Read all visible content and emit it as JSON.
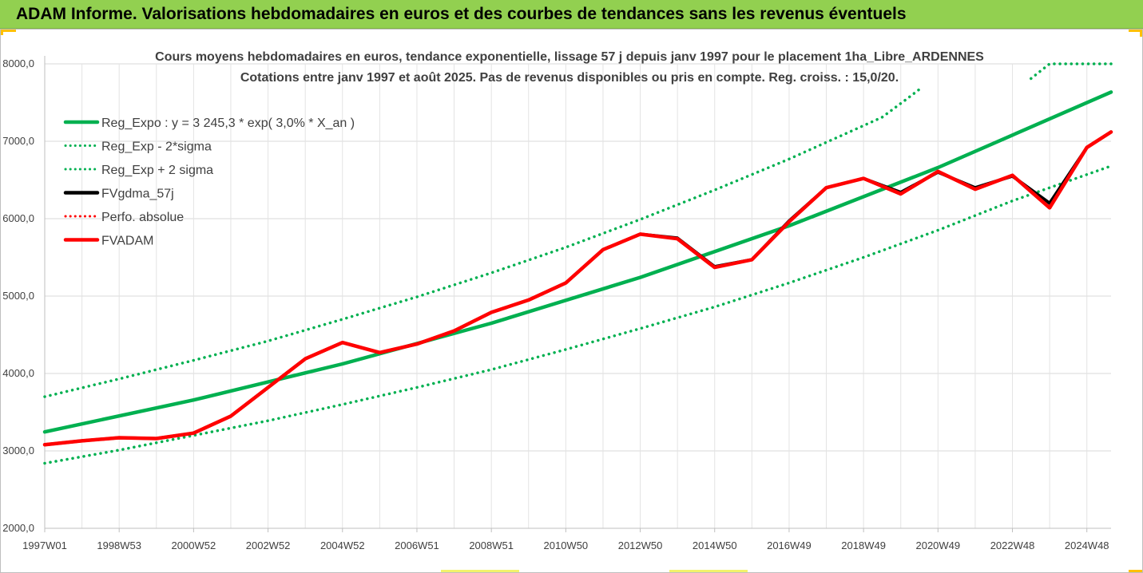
{
  "header": {
    "banner_text": "ADAM Informe. Valorisations hebdomadaires en euros et des courbes de tendances sans les revenus éventuels"
  },
  "chart_data": {
    "type": "line",
    "title_lines": [
      "Cours moyens hebdomadaires en euros, tendance exponentielle, lissage 57 j depuis janv 1997 pour le placement 1ha_Libre_ARDENNES",
      "Cotations entre janv 1997 et août 2025. Pas de revenus disponibles ou pris en compte. Reg. croiss. : 15,0/20."
    ],
    "xlabel": "",
    "ylabel": "",
    "ylim": [
      2000,
      8000
    ],
    "y_ticks": [
      "2000,0",
      "3000,0",
      "4000,0",
      "5000,0",
      "6000,0",
      "7000,0",
      "8000,0"
    ],
    "y_tick_values": [
      2000,
      3000,
      4000,
      5000,
      6000,
      7000,
      8000
    ],
    "xlim": [
      1997.0,
      2025.65
    ],
    "x_ticks": [
      "1997W01",
      "1998W53",
      "2000W52",
      "2002W52",
      "2004W52",
      "2006W51",
      "2008W51",
      "2010W50",
      "2012W50",
      "2014W50",
      "2016W49",
      "2018W49",
      "2020W49",
      "2022W48",
      "2024W48"
    ],
    "x_tick_values": [
      1997.0,
      1999.0,
      2001.0,
      2003.0,
      2005.0,
      2007.0,
      2009.0,
      2011.0,
      2013.0,
      2015.0,
      2017.0,
      2019.0,
      2021.0,
      2023.0,
      2025.0
    ],
    "grid": true,
    "legend_position": "top-left",
    "series": [
      {
        "name": "Reg_Expo : y = 3 245,3 * exp( 3,0% *  X_an )",
        "color": "#00b050",
        "style": "solid",
        "points": [
          [
            1997.0,
            3245
          ],
          [
            2001.0,
            3658
          ],
          [
            2005.0,
            4124
          ],
          [
            2009.0,
            4649
          ],
          [
            2013.0,
            5241
          ],
          [
            2017.0,
            5908
          ],
          [
            2021.0,
            6660
          ],
          [
            2025.65,
            7635
          ]
        ]
      },
      {
        "name": "Reg_Exp - 2*sigma",
        "color": "#00b050",
        "style": "dotted",
        "points": [
          [
            1997.0,
            2840
          ],
          [
            1999.0,
            3010
          ],
          [
            2001.0,
            3200
          ],
          [
            2003.0,
            3390
          ],
          [
            2005.0,
            3600
          ],
          [
            2007.0,
            3820
          ],
          [
            2009.0,
            4050
          ],
          [
            2011.0,
            4310
          ],
          [
            2013.0,
            4580
          ],
          [
            2015.0,
            4860
          ],
          [
            2017.0,
            5170
          ],
          [
            2019.0,
            5500
          ],
          [
            2021.0,
            5850
          ],
          [
            2023.0,
            6230
          ],
          [
            2025.65,
            6680
          ]
        ]
      },
      {
        "name": "Reg_Exp + 2 sigma",
        "color": "#00b050",
        "style": "dotted",
        "points": [
          [
            1997.0,
            3700
          ],
          [
            1999.0,
            3930
          ],
          [
            2001.0,
            4170
          ],
          [
            2003.0,
            4420
          ],
          [
            2005.0,
            4700
          ],
          [
            2007.0,
            4990
          ],
          [
            2009.0,
            5300
          ],
          [
            2011.0,
            5630
          ],
          [
            2013.0,
            5990
          ],
          [
            2015.0,
            6370
          ],
          [
            2017.0,
            6770
          ],
          [
            2018.9,
            7180
          ],
          [
            2019.5,
            7310
          ],
          [
            2020.2,
            7560
          ],
          [
            2020.5,
            7670
          ],
          [
            null,
            null
          ],
          [
            2023.5,
            7810
          ],
          [
            2024.0,
            8000
          ],
          [
            2025.65,
            8000
          ]
        ]
      },
      {
        "name": "FVgdma_57j",
        "color": "#000000",
        "style": "solid",
        "points": [
          [
            1997.0,
            3080
          ],
          [
            1998.0,
            3130
          ],
          [
            1999.0,
            3170
          ],
          [
            2000.0,
            3160
          ],
          [
            2001.0,
            3230
          ],
          [
            2002.0,
            3450
          ],
          [
            2003.0,
            3820
          ],
          [
            2004.0,
            4190
          ],
          [
            2005.0,
            4400
          ],
          [
            2006.0,
            4270
          ],
          [
            2007.0,
            4380
          ],
          [
            2008.0,
            4550
          ],
          [
            2009.0,
            4790
          ],
          [
            2010.0,
            4950
          ],
          [
            2011.0,
            5170
          ],
          [
            2012.0,
            5600
          ],
          [
            2013.0,
            5800
          ],
          [
            2014.0,
            5750
          ],
          [
            2015.0,
            5380
          ],
          [
            2016.0,
            5470
          ],
          [
            2017.0,
            5970
          ],
          [
            2018.0,
            6400
          ],
          [
            2019.0,
            6520
          ],
          [
            2020.0,
            6340
          ],
          [
            2021.0,
            6600
          ],
          [
            2022.0,
            6400
          ],
          [
            2023.0,
            6550
          ],
          [
            2024.0,
            6200
          ],
          [
            2025.0,
            6920
          ],
          [
            2025.65,
            7120
          ]
        ]
      },
      {
        "name": "Perfo. absolue",
        "color": "#ff0000",
        "style": "dotted",
        "points": []
      },
      {
        "name": "FVADAM",
        "color": "#ff0000",
        "style": "solid",
        "points": [
          [
            1997.0,
            3080
          ],
          [
            1998.0,
            3130
          ],
          [
            1999.0,
            3170
          ],
          [
            2000.0,
            3160
          ],
          [
            2001.0,
            3230
          ],
          [
            2002.0,
            3450
          ],
          [
            2003.0,
            3820
          ],
          [
            2004.0,
            4190
          ],
          [
            2005.0,
            4400
          ],
          [
            2006.0,
            4270
          ],
          [
            2007.0,
            4380
          ],
          [
            2008.0,
            4550
          ],
          [
            2009.0,
            4790
          ],
          [
            2010.0,
            4950
          ],
          [
            2011.0,
            5170
          ],
          [
            2012.0,
            5600
          ],
          [
            2013.0,
            5800
          ],
          [
            2014.0,
            5740
          ],
          [
            2015.0,
            5370
          ],
          [
            2016.0,
            5470
          ],
          [
            2017.0,
            5960
          ],
          [
            2018.0,
            6400
          ],
          [
            2019.0,
            6520
          ],
          [
            2020.0,
            6320
          ],
          [
            2021.0,
            6610
          ],
          [
            2022.0,
            6380
          ],
          [
            2023.0,
            6560
          ],
          [
            2024.0,
            6140
          ],
          [
            2025.0,
            6920
          ],
          [
            2025.65,
            7120
          ]
        ]
      }
    ]
  }
}
